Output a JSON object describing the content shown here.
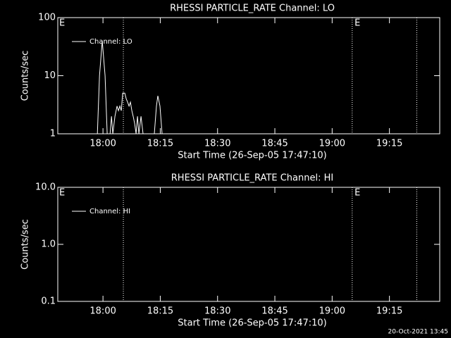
{
  "chart_data": [
    {
      "type": "line",
      "title": "RHESSI PARTICLE_RATE Channel: LO",
      "xlabel": "Start Time (26-Sep-05 17:47:10)",
      "ylabel": "Counts/sec",
      "log_y": true,
      "xlim": [
        60,
        6060
      ],
      "ylim": [
        1,
        100
      ],
      "yticks": [
        1,
        10,
        100
      ],
      "xticks": [
        {
          "value": 770,
          "label": "18:00"
        },
        {
          "value": 1670,
          "label": "18:15"
        },
        {
          "value": 2570,
          "label": "18:30"
        },
        {
          "value": 3470,
          "label": "18:45"
        },
        {
          "value": 4370,
          "label": "19:00"
        },
        {
          "value": 5270,
          "label": "19:15"
        }
      ],
      "markers": [
        1090,
        4685,
        5700
      ],
      "annotations": [
        {
          "text": "E",
          "x": 60
        },
        {
          "text": "E",
          "x": 4700
        }
      ],
      "legend": "upper left",
      "series": [
        {
          "name": "Channel: LO",
          "color": "#ffffff",
          "x": [
            682,
            715,
            759,
            803,
            836,
            881,
            903,
            925,
            958,
            991,
            1013,
            1035,
            1057,
            1080,
            1113,
            1135,
            1157,
            1179,
            1201,
            1223,
            1245,
            1268,
            1290,
            1312,
            1334,
            1367,
            1400,
            1577,
            1610,
            1632,
            1665,
            1698
          ],
          "values": [
            1,
            10,
            40,
            10,
            1,
            1,
            2,
            1,
            2,
            3,
            2.5,
            3,
            2.5,
            5,
            5,
            4,
            3.5,
            3,
            3.5,
            2.5,
            2,
            1.5,
            1,
            2,
            1,
            2,
            1,
            1,
            3,
            4.5,
            3,
            1
          ]
        }
      ]
    },
    {
      "type": "line",
      "title": "RHESSI PARTICLE_RATE Channel: HI",
      "xlabel": "Start Time (26-Sep-05 17:47:10)",
      "ylabel": "Counts/sec",
      "log_y": true,
      "xlim": [
        60,
        6060
      ],
      "ylim": [
        0.1,
        10
      ],
      "yticks": [
        0.1,
        {
          "value": 1,
          "label": "1.0"
        },
        {
          "value": 10,
          "label": "10.0"
        }
      ],
      "xticks": [
        {
          "value": 770,
          "label": "18:00"
        },
        {
          "value": 1670,
          "label": "18:15"
        },
        {
          "value": 2570,
          "label": "18:30"
        },
        {
          "value": 3470,
          "label": "18:45"
        },
        {
          "value": 4370,
          "label": "19:00"
        },
        {
          "value": 5270,
          "label": "19:15"
        }
      ],
      "markers": [
        1090,
        4685,
        5700
      ],
      "annotations": [
        {
          "text": "E",
          "x": 60
        },
        {
          "text": "E",
          "x": 4700
        }
      ],
      "legend": "upper left",
      "series": [
        {
          "name": "Channel: HI",
          "color": "#ffffff",
          "x": [],
          "values": []
        }
      ]
    }
  ],
  "footer": "20-Oct-2021 13:45"
}
